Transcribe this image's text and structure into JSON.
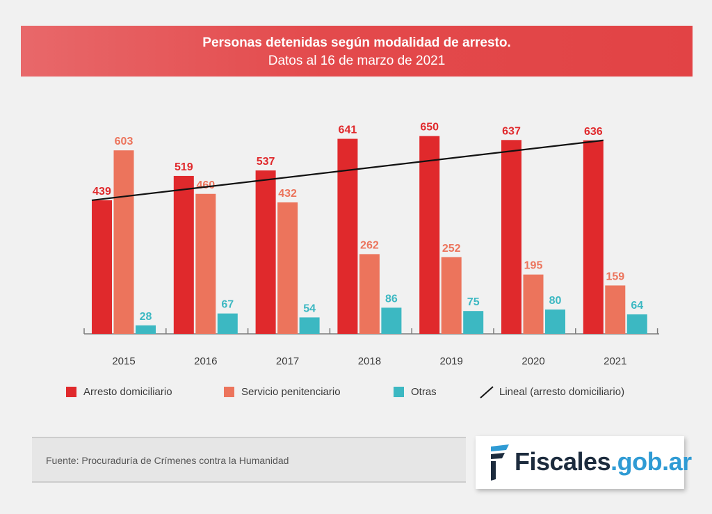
{
  "header": {
    "title": "Personas detenidas según modalidad de arresto.",
    "subtitle": "Datos al 16 de marzo de 2021"
  },
  "chart_data": {
    "type": "bar",
    "categories": [
      "2015",
      "2016",
      "2017",
      "2018",
      "2019",
      "2020",
      "2021"
    ],
    "series": [
      {
        "name": "Arresto domiciliario",
        "color": "#e0292c",
        "values": [
          439,
          519,
          537,
          641,
          650,
          637,
          636
        ]
      },
      {
        "name": "Servicio penitenciario",
        "color": "#ec745c",
        "values": [
          603,
          460,
          432,
          262,
          252,
          195,
          159
        ]
      },
      {
        "name": "Otras",
        "color": "#3cb8c2",
        "values": [
          28,
          67,
          54,
          86,
          75,
          80,
          64
        ]
      }
    ],
    "trendline": {
      "name": "Lineal (arresto domiciliario)",
      "series": "Arresto domiciliario",
      "start": 439,
      "end": 636,
      "color": "#111111"
    },
    "ylim": [
      0,
      700
    ],
    "grid": false,
    "legend_position": "bottom"
  },
  "legend": {
    "items": [
      {
        "label": "Arresto domiciliario",
        "color": "#e0292c"
      },
      {
        "label": "Servicio penitenciario",
        "color": "#ec745c"
      },
      {
        "label": "Otras",
        "color": "#3cb8c2"
      },
      {
        "label": "Lineal (arresto domiciliario)",
        "color": "#111111"
      }
    ]
  },
  "footer": {
    "source": "Fuente: Procuraduría de Crímenes contra la Humanidad",
    "logo_main": "Fiscales",
    "logo_domain": ".gob.ar",
    "logo_colors": {
      "main": "#1c2b3d",
      "domain": "#2f9bd4"
    }
  }
}
